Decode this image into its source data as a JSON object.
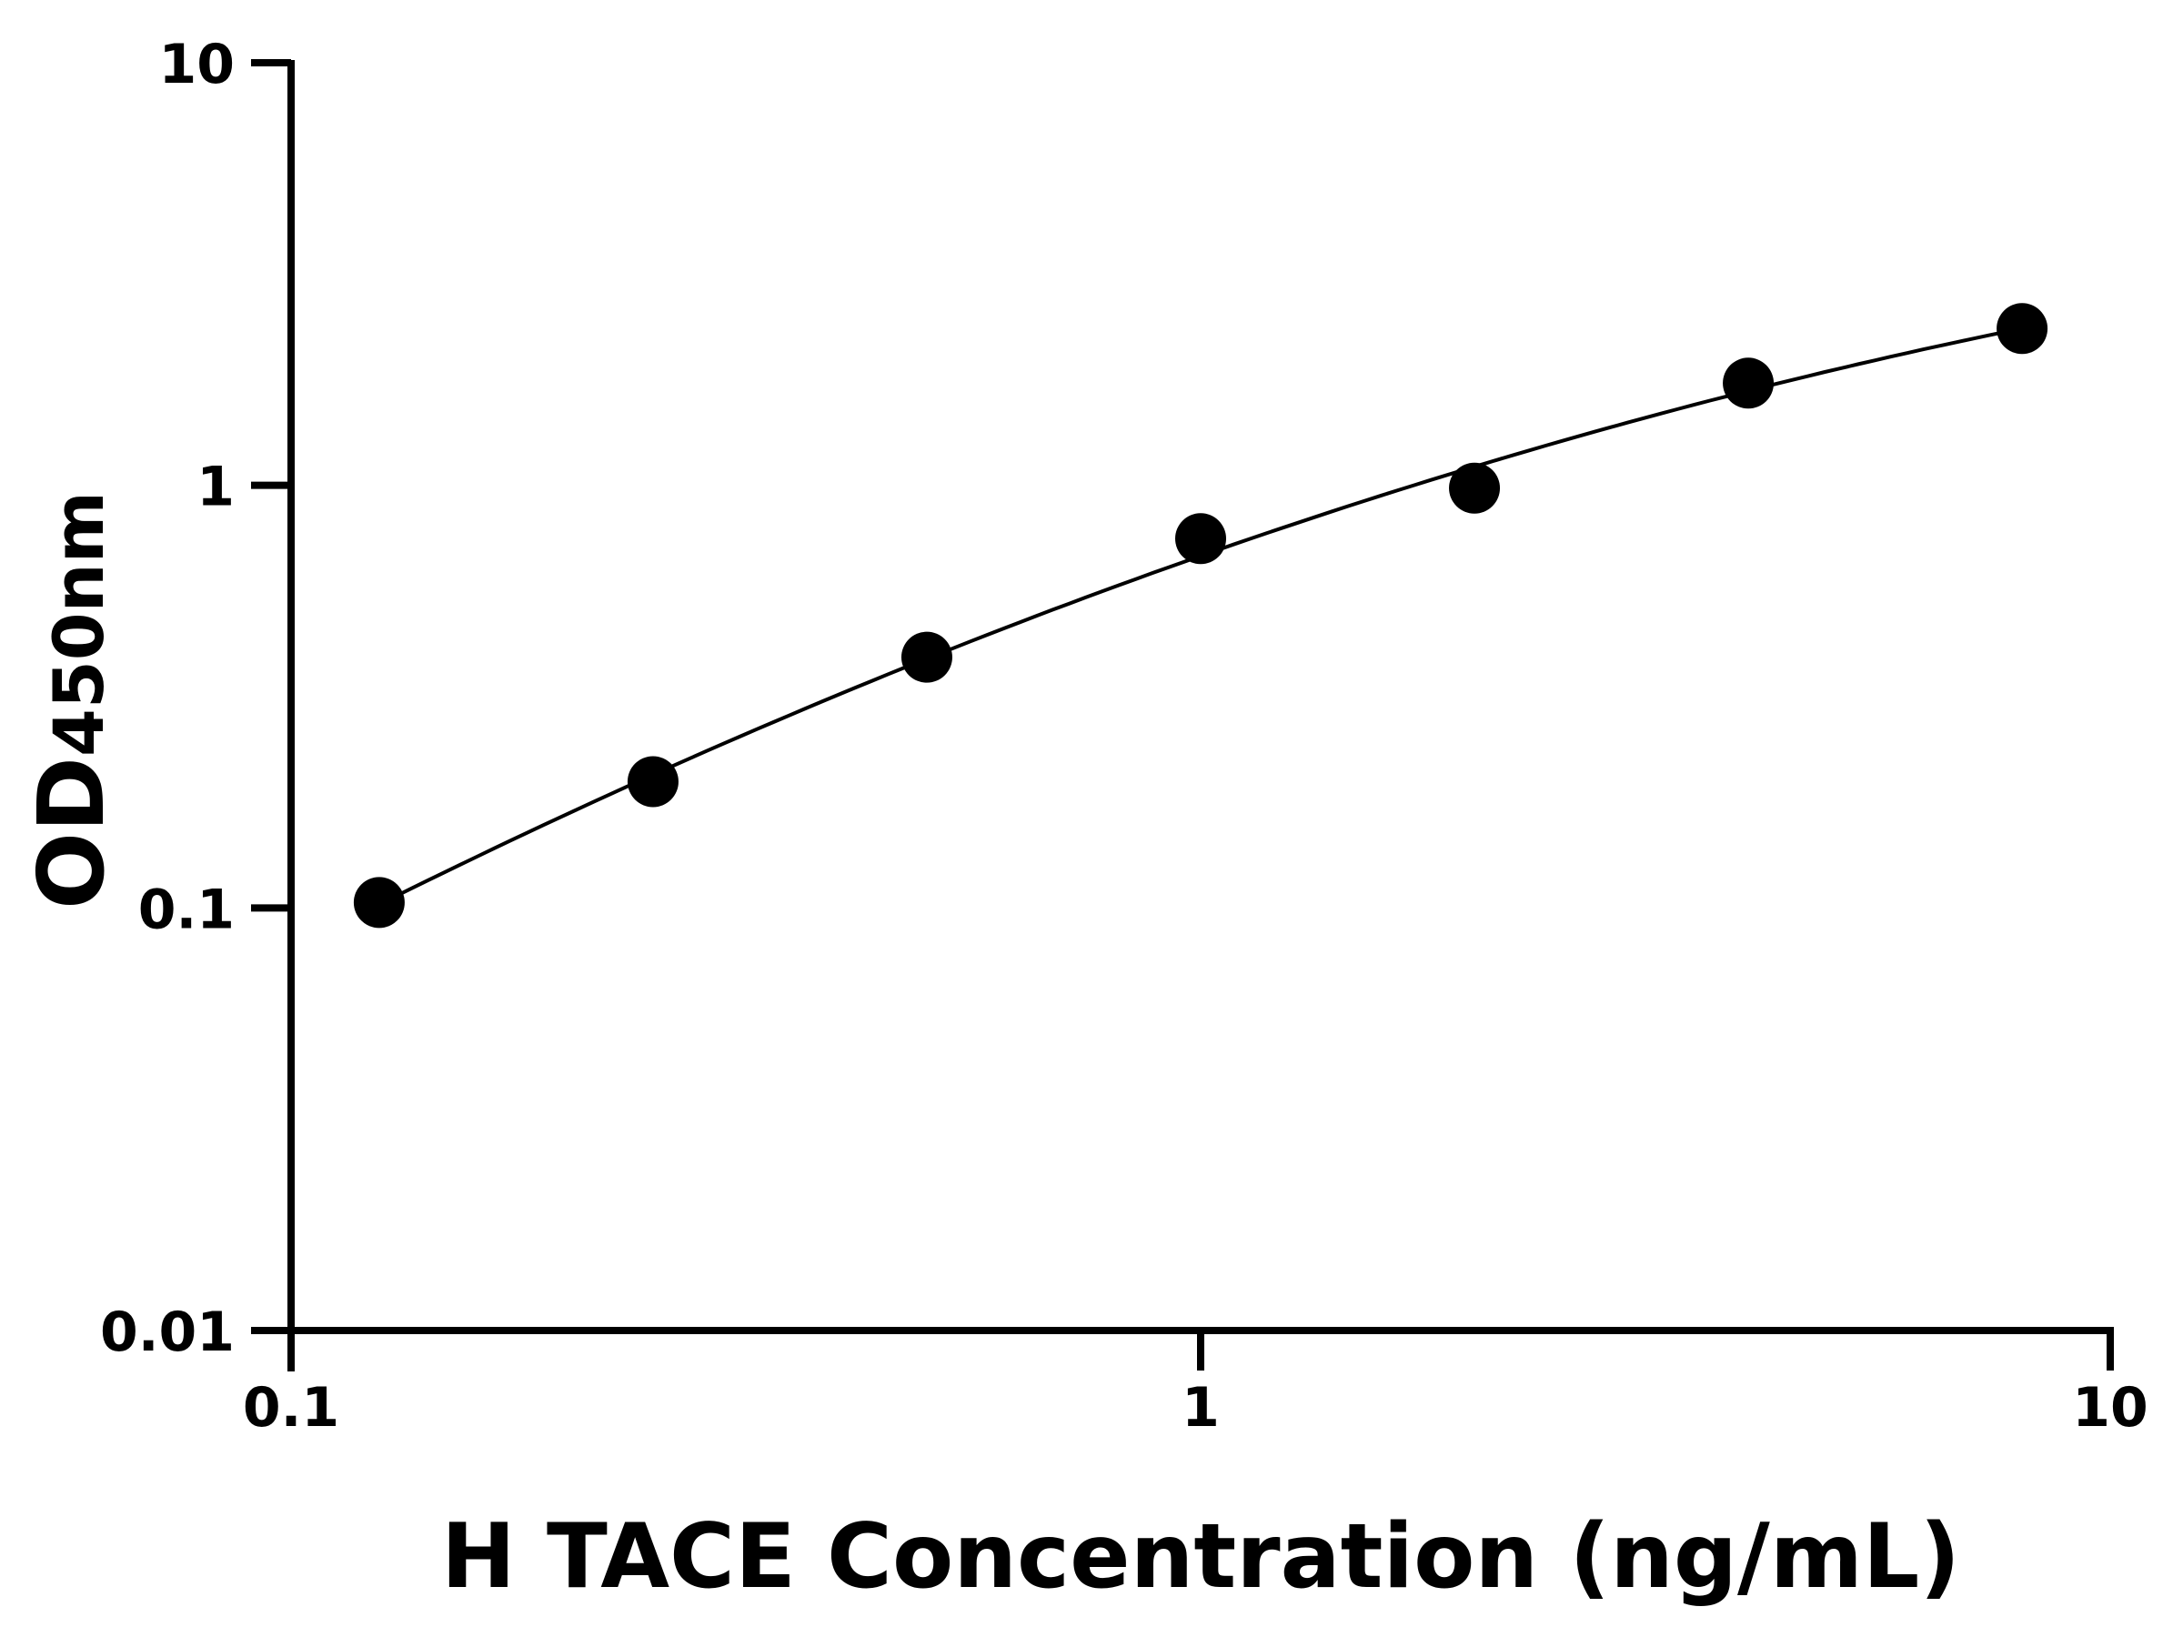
{
  "chart_data": {
    "type": "scatter",
    "title": "",
    "xlabel": "H TACE Concentration (ng/mL)",
    "ylabel_main": "OD",
    "ylabel_sub": "450nm",
    "x_scale": "log",
    "y_scale": "log",
    "xlim": [
      0.1,
      10
    ],
    "ylim": [
      0.01,
      10
    ],
    "x_ticks": [
      "0.1",
      "1",
      "10"
    ],
    "y_ticks": [
      "0.01",
      "0.1",
      "1",
      "10"
    ],
    "grid": false,
    "legend": "none",
    "fit_curve": true,
    "colors": {
      "points": "#000000",
      "curve": "#000000",
      "axes": "#000000"
    },
    "series": [
      {
        "x": [
          0.125,
          0.25,
          0.5,
          1,
          2,
          4,
          8
        ],
        "y": [
          0.103,
          0.199,
          0.392,
          0.748,
          0.985,
          1.745,
          2.35
        ]
      }
    ]
  }
}
